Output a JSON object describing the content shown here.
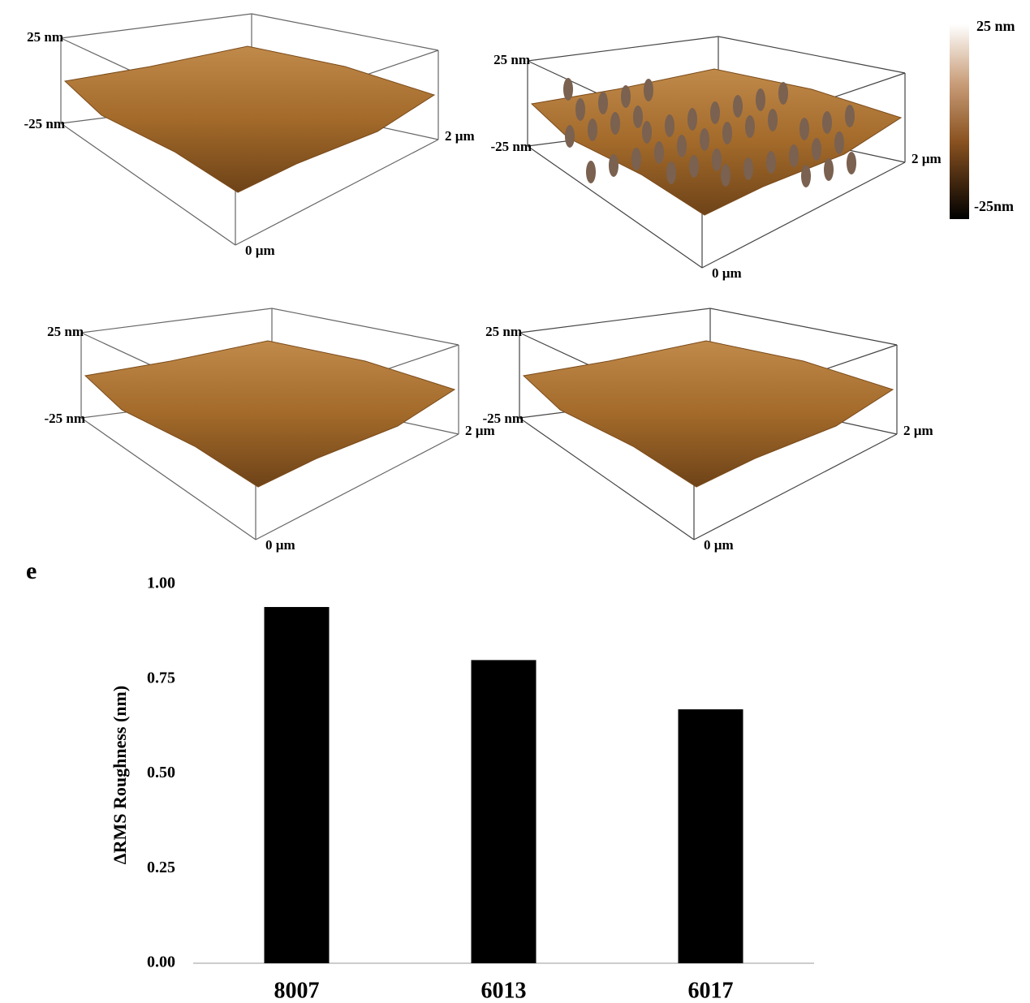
{
  "panels": [
    {
      "z_max": "25 nm",
      "z_min": "-25 nm",
      "x_max": "2 µm",
      "x_min": "0 µm"
    },
    {
      "z_max": "25 nm",
      "z_min": "-25 nm",
      "x_max": "2 µm",
      "x_min": "0 µm"
    },
    {
      "z_max": "25 nm",
      "z_min": "-25 nm",
      "x_max": "2 µm",
      "x_min": "0 µm"
    },
    {
      "z_max": "25 nm",
      "z_min": "-25 nm",
      "x_max": "2 µm",
      "x_min": "0 µm"
    }
  ],
  "colorbar": {
    "max": "25 nm",
    "min": "-25nm"
  },
  "chart_data": {
    "type": "bar",
    "panel_label": "e",
    "y_label": "ΔRMS Roughness (nm)",
    "categories": [
      "8007",
      "6013",
      "6017"
    ],
    "values": [
      0.94,
      0.8,
      0.67
    ],
    "color": "#000000",
    "ylim": [
      0,
      1
    ],
    "yticks": [
      {
        "value": 0,
        "label": "0.00"
      },
      {
        "value": 0.25,
        "label": "0.25"
      },
      {
        "value": 0.5,
        "label": "0.50"
      },
      {
        "value": 0.75,
        "label": "0.75"
      },
      {
        "value": 1,
        "label": "1.00"
      }
    ]
  }
}
